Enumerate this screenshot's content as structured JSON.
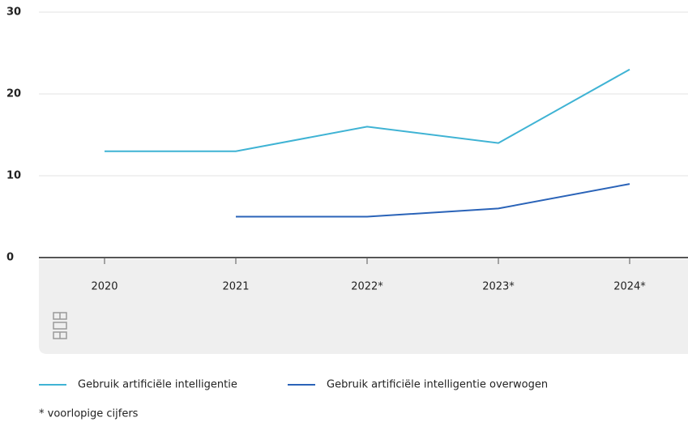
{
  "chart_data": {
    "type": "line",
    "categories": [
      "2020",
      "2021",
      "2022*",
      "2023*",
      "2024*"
    ],
    "series": [
      {
        "name": "Gebruik artificiële intelligentie",
        "color": "#3fb3d4",
        "values": [
          13,
          13,
          16,
          14,
          23
        ]
      },
      {
        "name": "Gebruik artificiële intelligentie overwogen",
        "color": "#2a63b8",
        "values": [
          null,
          5,
          5,
          6,
          9
        ]
      }
    ],
    "ylim": [
      0,
      30
    ],
    "yticks": [
      0,
      10,
      20,
      30
    ],
    "grid": true,
    "note": "* voorlopige cijfers"
  }
}
